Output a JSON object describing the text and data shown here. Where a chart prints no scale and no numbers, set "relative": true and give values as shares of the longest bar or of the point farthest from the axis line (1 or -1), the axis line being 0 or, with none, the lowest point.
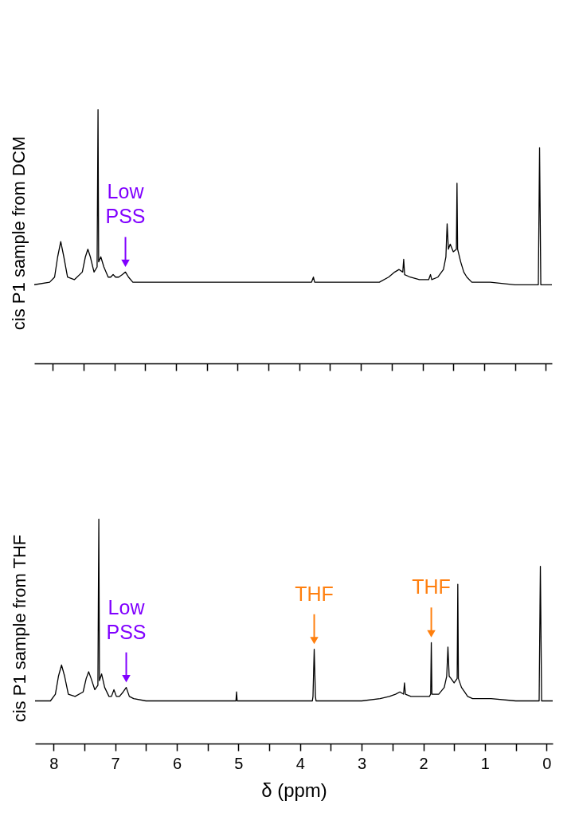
{
  "chart_data": [
    {
      "type": "line",
      "relative": true,
      "ylabel": "cis P1 sample from DCM",
      "xlim": [
        8.3,
        -0.1
      ],
      "xticks": [
        8,
        {
          "value": 7.5,
          "label": null
        },
        7,
        {
          "value": 6.5,
          "label": null
        },
        6,
        {
          "value": 5.5,
          "label": null
        },
        5,
        {
          "value": 4.5,
          "label": null
        },
        4,
        {
          "value": 3.5,
          "label": null
        },
        3,
        {
          "value": 2.5,
          "label": null
        },
        2,
        {
          "value": 1.5,
          "label": null
        },
        1,
        {
          "value": 0.5,
          "label": null
        },
        0
      ],
      "tick_labels": false,
      "series": [
        {
          "color": "#000000",
          "x": [
            8.3,
            8.05,
            7.97,
            7.92,
            7.87,
            7.82,
            7.76,
            7.65,
            7.52,
            7.47,
            7.43,
            7.39,
            7.33,
            7.28,
            7.265,
            7.255,
            7.22,
            7.17,
            7.1,
            7.06,
            7.02,
            6.98,
            6.93,
            6.87,
            6.82,
            6.77,
            6.7,
            6.5,
            5.5,
            5.03,
            4.5,
            3.8,
            3.77,
            3.75,
            3.0,
            2.7,
            2.55,
            2.45,
            2.38,
            2.32,
            2.305,
            2.29,
            2.2,
            2.05,
            1.9,
            1.87,
            1.85,
            1.75,
            1.66,
            1.62,
            1.6,
            1.58,
            1.55,
            1.5,
            1.45,
            1.44,
            1.43,
            1.38,
            1.33,
            1.28,
            1.2,
            0.9,
            0.5,
            0.12,
            0.1,
            0.08,
            -0.1
          ],
          "values": [
            0.31,
            0.32,
            0.34,
            0.42,
            0.48,
            0.42,
            0.34,
            0.33,
            0.36,
            0.42,
            0.45,
            0.42,
            0.36,
            0.38,
            1,
            0.4,
            0.42,
            0.38,
            0.34,
            0.34,
            0.35,
            0.34,
            0.34,
            0.35,
            0.36,
            0.34,
            0.32,
            0.32,
            0.32,
            0.32,
            0.32,
            0.32,
            0.34,
            0.32,
            0.32,
            0.32,
            0.34,
            0.36,
            0.37,
            0.36,
            0.41,
            0.35,
            0.34,
            0.33,
            0.33,
            0.35,
            0.33,
            0.34,
            0.37,
            0.42,
            0.55,
            0.45,
            0.47,
            0.44,
            0.45,
            0.71,
            0.45,
            0.4,
            0.36,
            0.34,
            0.32,
            0.32,
            0.31,
            0.31,
            0.85,
            0.31,
            0.31
          ]
        }
      ],
      "annotations": [
        {
          "text": "Low\nPSS",
          "x": 6.82,
          "y": 0.36
        }
      ]
    },
    {
      "type": "line",
      "relative": true,
      "ylabel": "cis P1 sample from THF",
      "xlabel": "δ (ppm)",
      "xlim": [
        8.3,
        -0.1
      ],
      "xticks": [
        8,
        {
          "value": 7.5,
          "label": null
        },
        7,
        {
          "value": 6.5,
          "label": null
        },
        6,
        {
          "value": 5.5,
          "label": null
        },
        5,
        {
          "value": 4.5,
          "label": null
        },
        4,
        {
          "value": 3.5,
          "label": null
        },
        3,
        {
          "value": 2.5,
          "label": null
        },
        2,
        {
          "value": 1.5,
          "label": null
        },
        1,
        {
          "value": 0.5,
          "label": null
        },
        0
      ],
      "series": [
        {
          "color": "#000000",
          "x": [
            8.3,
            8.05,
            7.97,
            7.92,
            7.87,
            7.82,
            7.76,
            7.65,
            7.52,
            7.47,
            7.43,
            7.39,
            7.33,
            7.28,
            7.265,
            7.255,
            7.22,
            7.17,
            7.1,
            7.06,
            7.02,
            6.98,
            6.93,
            6.87,
            6.82,
            6.77,
            6.7,
            6.5,
            5.5,
            5.04,
            5.03,
            5.02,
            4.5,
            3.8,
            3.79,
            3.77,
            3.75,
            3.74,
            3.0,
            2.7,
            2.55,
            2.45,
            2.38,
            2.32,
            2.305,
            2.29,
            2.2,
            2.05,
            1.9,
            1.88,
            1.87,
            1.86,
            1.75,
            1.66,
            1.62,
            1.6,
            1.58,
            1.55,
            1.5,
            1.45,
            1.44,
            1.43,
            1.38,
            1.33,
            1.28,
            1.2,
            0.9,
            0.5,
            0.12,
            0.1,
            0.08,
            -0.1
          ],
          "values": [
            0.19,
            0.19,
            0.22,
            0.3,
            0.35,
            0.3,
            0.22,
            0.21,
            0.23,
            0.29,
            0.32,
            0.29,
            0.24,
            0.26,
            1,
            0.28,
            0.31,
            0.25,
            0.21,
            0.21,
            0.24,
            0.21,
            0.21,
            0.23,
            0.25,
            0.21,
            0.2,
            0.19,
            0.19,
            0.19,
            0.23,
            0.19,
            0.19,
            0.19,
            0.21,
            0.42,
            0.21,
            0.19,
            0.19,
            0.2,
            0.21,
            0.22,
            0.23,
            0.22,
            0.27,
            0.22,
            0.21,
            0.21,
            0.21,
            0.22,
            0.45,
            0.22,
            0.22,
            0.25,
            0.3,
            0.43,
            0.3,
            0.29,
            0.27,
            0.29,
            0.71,
            0.29,
            0.25,
            0.23,
            0.21,
            0.2,
            0.2,
            0.19,
            0.19,
            0.79,
            0.19,
            0.19
          ]
        }
      ],
      "annotations": [
        {
          "text": "Low\nPSS",
          "x": 6.82,
          "y": 0.25
        },
        {
          "text": "THF",
          "x": 3.77,
          "y": 0.42
        },
        {
          "text": "THF",
          "x": 1.87,
          "y": 0.45
        }
      ]
    }
  ]
}
